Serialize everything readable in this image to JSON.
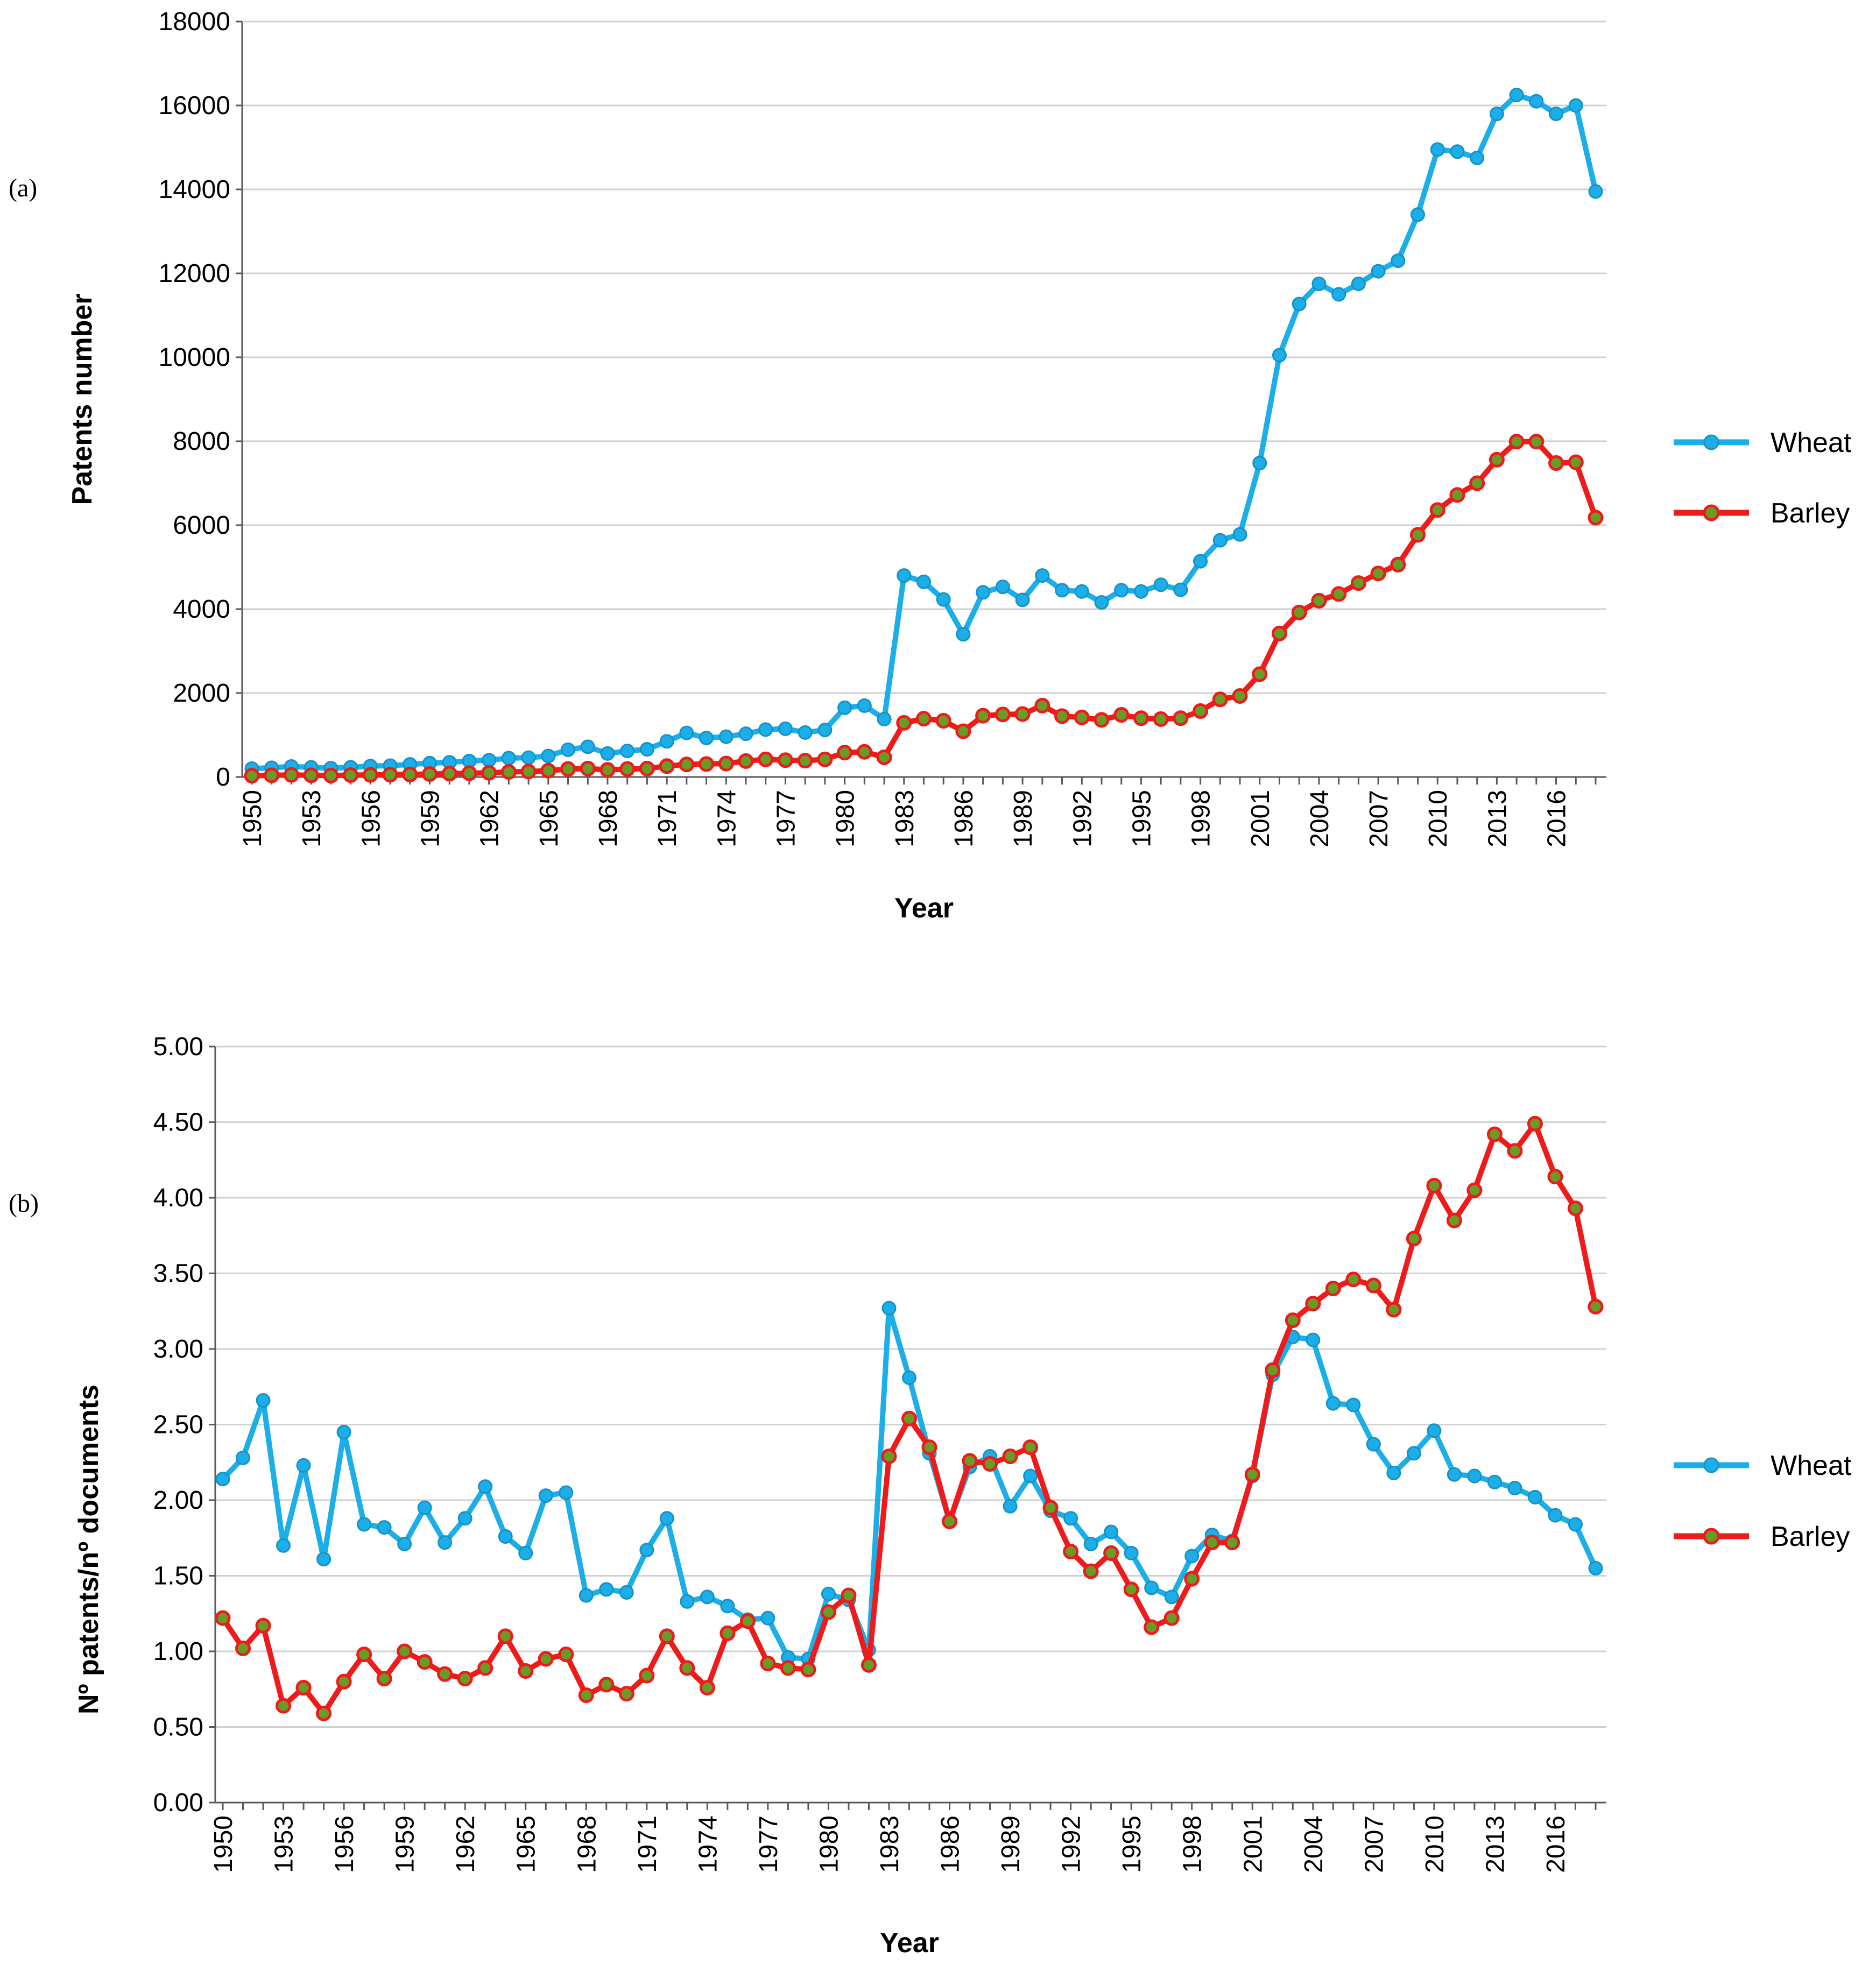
{
  "colors": {
    "wheat": "#1BAEE8",
    "barley": "#EF1A1A",
    "barley_marker_fill": "#6A9A28",
    "grid": "#D0D0D0",
    "axis": "#595959"
  },
  "chart_data": [
    {
      "panel": "(a)",
      "type": "line",
      "xlabel": "Year",
      "ylabel": "Patents number",
      "ylim": [
        0,
        18000
      ],
      "yticks": [
        "0",
        "2000",
        "4000",
        "6000",
        "8000",
        "10000",
        "12000",
        "14000",
        "16000",
        "18000"
      ],
      "x_tick_labels": [
        "1950",
        "1953",
        "1956",
        "1959",
        "1962",
        "1965",
        "1968",
        "1971",
        "1974",
        "1977",
        "1980",
        "1983",
        "1986",
        "1989",
        "1992",
        "1995",
        "1998",
        "2001",
        "2004",
        "2007",
        "2010",
        "2013",
        "2016"
      ],
      "x_start": 1950,
      "x_end": 2018,
      "legend": {
        "position": "right",
        "entries": [
          "Wheat",
          "Barley"
        ]
      },
      "series": [
        {
          "name": "Wheat",
          "values": [
            200,
            220,
            250,
            230,
            210,
            230,
            260,
            270,
            300,
            330,
            350,
            380,
            400,
            450,
            460,
            500,
            650,
            720,
            560,
            620,
            660,
            850,
            1050,
            930,
            960,
            1030,
            1130,
            1150,
            1060,
            1120,
            1650,
            1700,
            1380,
            4800,
            4650,
            4230,
            3400,
            4400,
            4530,
            4220,
            4800,
            4450,
            4420,
            4160,
            4450,
            4420,
            4580,
            4460,
            5140,
            5640,
            5780,
            7480,
            10050,
            11270,
            11750,
            11500,
            11750,
            12050,
            12300,
            13400,
            14950,
            14900,
            14750,
            15800,
            16250,
            16100,
            15800,
            16000,
            13950
          ]
        },
        {
          "name": "Barley",
          "values": [
            30,
            40,
            50,
            40,
            35,
            45,
            50,
            55,
            60,
            70,
            80,
            90,
            100,
            120,
            130,
            150,
            190,
            200,
            170,
            190,
            200,
            260,
            300,
            310,
            320,
            380,
            420,
            400,
            390,
            420,
            580,
            600,
            470,
            1290,
            1390,
            1340,
            1090,
            1460,
            1490,
            1500,
            1700,
            1450,
            1420,
            1360,
            1480,
            1400,
            1380,
            1400,
            1570,
            1850,
            1930,
            2450,
            3420,
            3920,
            4200,
            4360,
            4620,
            4850,
            5060,
            5770,
            6360,
            6720,
            7000,
            7560,
            7990,
            7990,
            7480,
            7500,
            6180
          ]
        }
      ]
    },
    {
      "panel": "(b)",
      "type": "line",
      "xlabel": "Year",
      "ylabel": "Nº patents/nº documents",
      "ylim": [
        0,
        5
      ],
      "yticks": [
        "0.00",
        "0.50",
        "1.00",
        "1.50",
        "2.00",
        "2.50",
        "3.00",
        "3.50",
        "4.00",
        "4.50",
        "5.00"
      ],
      "x_tick_labels": [
        "1950",
        "1953",
        "1956",
        "1959",
        "1962",
        "1965",
        "1968",
        "1971",
        "1974",
        "1977",
        "1980",
        "1983",
        "1986",
        "1989",
        "1992",
        "1995",
        "1998",
        "2001",
        "2004",
        "2007",
        "2010",
        "2013",
        "2016"
      ],
      "x_start": 1950,
      "x_end": 2018,
      "legend": {
        "position": "right",
        "entries": [
          "Wheat",
          "Barley"
        ]
      },
      "series": [
        {
          "name": "Wheat",
          "values": [
            2.14,
            2.28,
            2.66,
            1.7,
            2.23,
            1.61,
            2.45,
            1.84,
            1.82,
            1.71,
            1.95,
            1.72,
            1.88,
            2.09,
            1.76,
            1.65,
            2.03,
            2.05,
            1.37,
            1.41,
            1.39,
            1.67,
            1.88,
            1.33,
            1.36,
            1.3,
            1.21,
            1.22,
            0.96,
            0.95,
            1.38,
            1.34,
            1.01,
            3.27,
            2.81,
            2.31,
            1.86,
            2.22,
            2.29,
            1.96,
            2.16,
            1.93,
            1.88,
            1.71,
            1.79,
            1.65,
            1.42,
            1.36,
            1.63,
            1.77,
            1.73,
            2.16,
            2.83,
            3.08,
            3.06,
            2.64,
            2.63,
            2.37,
            2.18,
            2.31,
            2.46,
            2.17,
            2.16,
            2.12,
            2.08,
            2.02,
            1.9,
            1.84,
            1.55
          ]
        },
        {
          "name": "Barley",
          "values": [
            1.22,
            1.02,
            1.17,
            0.64,
            0.76,
            0.59,
            0.8,
            0.98,
            0.82,
            1.0,
            0.93,
            0.85,
            0.82,
            0.89,
            1.1,
            0.87,
            0.95,
            0.98,
            0.71,
            0.78,
            0.72,
            0.84,
            1.1,
            0.89,
            0.76,
            1.12,
            1.2,
            0.92,
            0.89,
            0.88,
            1.26,
            1.37,
            0.91,
            2.29,
            2.54,
            2.35,
            1.86,
            2.26,
            2.24,
            2.29,
            2.35,
            1.95,
            1.66,
            1.53,
            1.65,
            1.41,
            1.16,
            1.22,
            1.48,
            1.72,
            1.72,
            2.17,
            2.86,
            3.19,
            3.3,
            3.4,
            3.46,
            3.42,
            3.26,
            3.73,
            4.08,
            3.85,
            4.05,
            4.42,
            4.31,
            4.49,
            4.14,
            3.93,
            3.28
          ]
        }
      ]
    }
  ]
}
